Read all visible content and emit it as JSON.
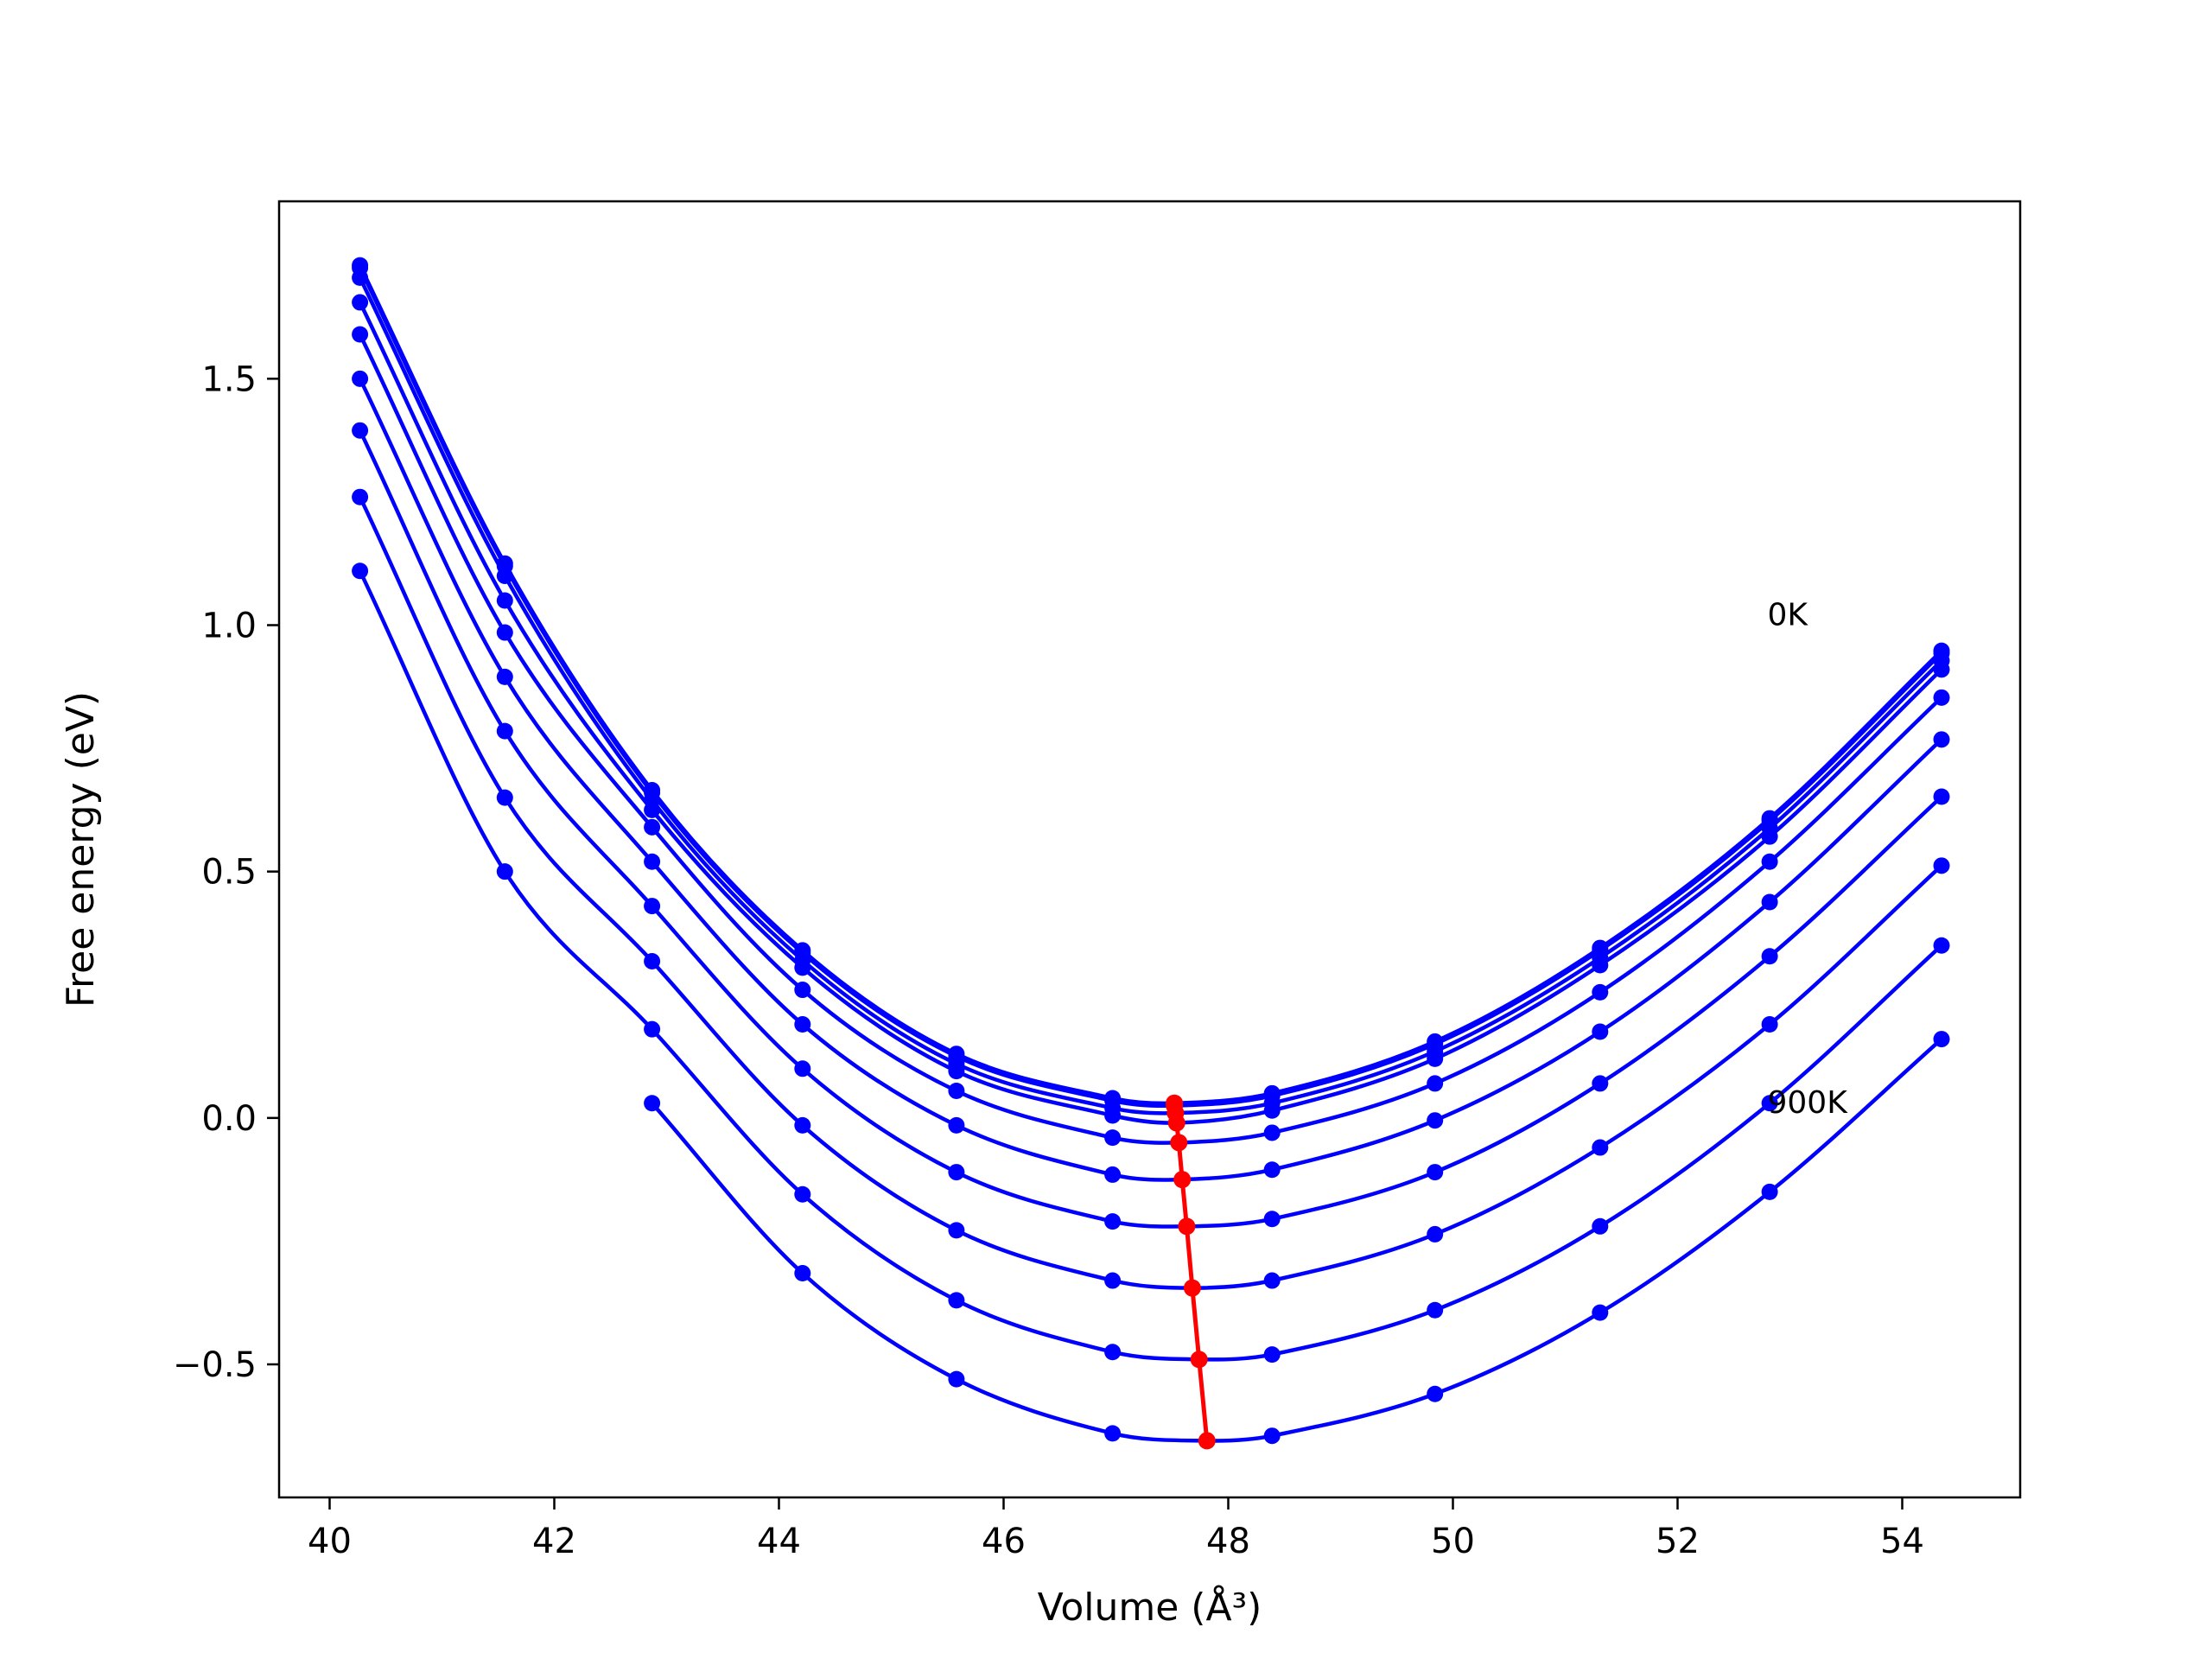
{
  "chart_data": {
    "type": "line",
    "title": "",
    "xlabel": "Volume (Å³)",
    "ylabel": "Free energy (eV)",
    "xlim": [
      39.55,
      55.05
    ],
    "ylim": [
      -0.77,
      1.86
    ],
    "xticks": [
      40,
      42,
      44,
      46,
      48,
      50,
      52,
      54
    ],
    "yticks": [
      -0.5,
      0.0,
      0.5,
      1.0,
      1.5
    ],
    "xtick_labels": [
      "40",
      "42",
      "44",
      "46",
      "48",
      "50",
      "52",
      "54"
    ],
    "ytick_labels": [
      "−0.5",
      "0.0",
      "0.5",
      "1.0",
      "1.5"
    ],
    "grid": false,
    "annotations": [
      {
        "text": "0K",
        "x": 52.8,
        "y": 1.0
      },
      {
        "text": "900K",
        "x": 52.8,
        "y": 0.01
      }
    ],
    "volumes": [
      40.27,
      41.56,
      42.87,
      44.21,
      45.58,
      46.97,
      48.39,
      49.84,
      51.31,
      52.82,
      54.35
    ],
    "series": [
      {
        "min_x": 47.52,
        "min_y": 0.03,
        "values": [
          1.73,
          1.125,
          0.665,
          0.34,
          0.13,
          0.04,
          0.05,
          0.155,
          0.345,
          0.608,
          0.948
        ]
      },
      {
        "min_x": 47.52,
        "min_y": 0.025,
        "values": [
          1.725,
          1.12,
          0.66,
          0.335,
          0.125,
          0.035,
          0.045,
          0.15,
          0.34,
          0.603,
          0.943
        ]
      },
      {
        "min_x": 47.53,
        "min_y": 0.01,
        "values": [
          1.705,
          1.1,
          0.645,
          0.32,
          0.11,
          0.02,
          0.03,
          0.135,
          0.325,
          0.588,
          0.928
        ]
      },
      {
        "min_x": 47.54,
        "min_y": -0.01,
        "values": [
          1.655,
          1.05,
          0.625,
          0.305,
          0.095,
          0.005,
          0.015,
          0.12,
          0.31,
          0.571,
          0.91
        ]
      },
      {
        "min_x": 47.56,
        "min_y": -0.05,
        "values": [
          1.59,
          0.985,
          0.59,
          0.26,
          0.055,
          -0.04,
          -0.03,
          0.07,
          0.255,
          0.52,
          0.853
        ]
      },
      {
        "min_x": 47.59,
        "min_y": -0.125,
        "values": [
          1.5,
          0.895,
          0.52,
          0.19,
          -0.015,
          -0.115,
          -0.105,
          -0.005,
          0.175,
          0.438,
          0.768
        ]
      },
      {
        "min_x": 47.63,
        "min_y": -0.22,
        "values": [
          1.395,
          0.785,
          0.43,
          0.1,
          -0.11,
          -0.21,
          -0.205,
          -0.11,
          0.07,
          0.328,
          0.652
        ]
      },
      {
        "min_x": 47.68,
        "min_y": -0.345,
        "values": [
          1.26,
          0.65,
          0.318,
          -0.015,
          -0.228,
          -0.33,
          -0.33,
          -0.236,
          -0.06,
          0.19,
          0.512
        ]
      },
      {
        "min_x": 47.74,
        "min_y": -0.49,
        "values": [
          1.11,
          0.5,
          0.18,
          -0.155,
          -0.37,
          -0.475,
          -0.48,
          -0.39,
          -0.22,
          0.03,
          0.35
        ]
      },
      {
        "min_x": 47.81,
        "min_y": -0.655,
        "values": [
          null,
          null,
          0.03,
          -0.315,
          -0.53,
          -0.64,
          -0.645,
          -0.56,
          -0.395,
          -0.15,
          0.16
        ]
      }
    ],
    "minima_line": {
      "x": [
        47.52,
        47.52,
        47.53,
        47.54,
        47.56,
        47.59,
        47.63,
        47.68,
        47.74,
        47.81
      ],
      "y": [
        0.03,
        0.025,
        0.01,
        -0.01,
        -0.05,
        -0.125,
        -0.22,
        -0.345,
        -0.49,
        -0.655
      ]
    },
    "colors": {
      "curves": "#0000ff",
      "minima": "#ff0000",
      "axes": "#000000"
    }
  }
}
